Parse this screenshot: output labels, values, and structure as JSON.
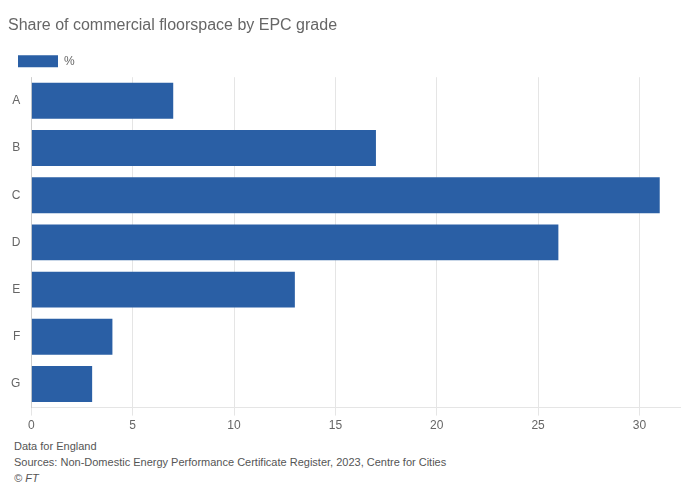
{
  "chart_data": {
    "type": "bar",
    "orientation": "horizontal",
    "title": "Share of commercial floorspace by EPC grade",
    "categories": [
      "A",
      "B",
      "C",
      "D",
      "E",
      "F",
      "G"
    ],
    "series": [
      {
        "name": "%",
        "color": "#2a5fa5",
        "values": [
          7,
          17,
          31,
          26,
          13,
          4,
          3
        ]
      }
    ],
    "xlim": [
      0,
      32
    ],
    "xticks": [
      0,
      5,
      10,
      15,
      20,
      25,
      30
    ],
    "grid": true,
    "legend": "upper left",
    "annotations": [
      "Data for England",
      "Sources: Non-Domestic Energy Performance Certificate Register, 2023, Centre for Cities",
      "© FT"
    ]
  }
}
